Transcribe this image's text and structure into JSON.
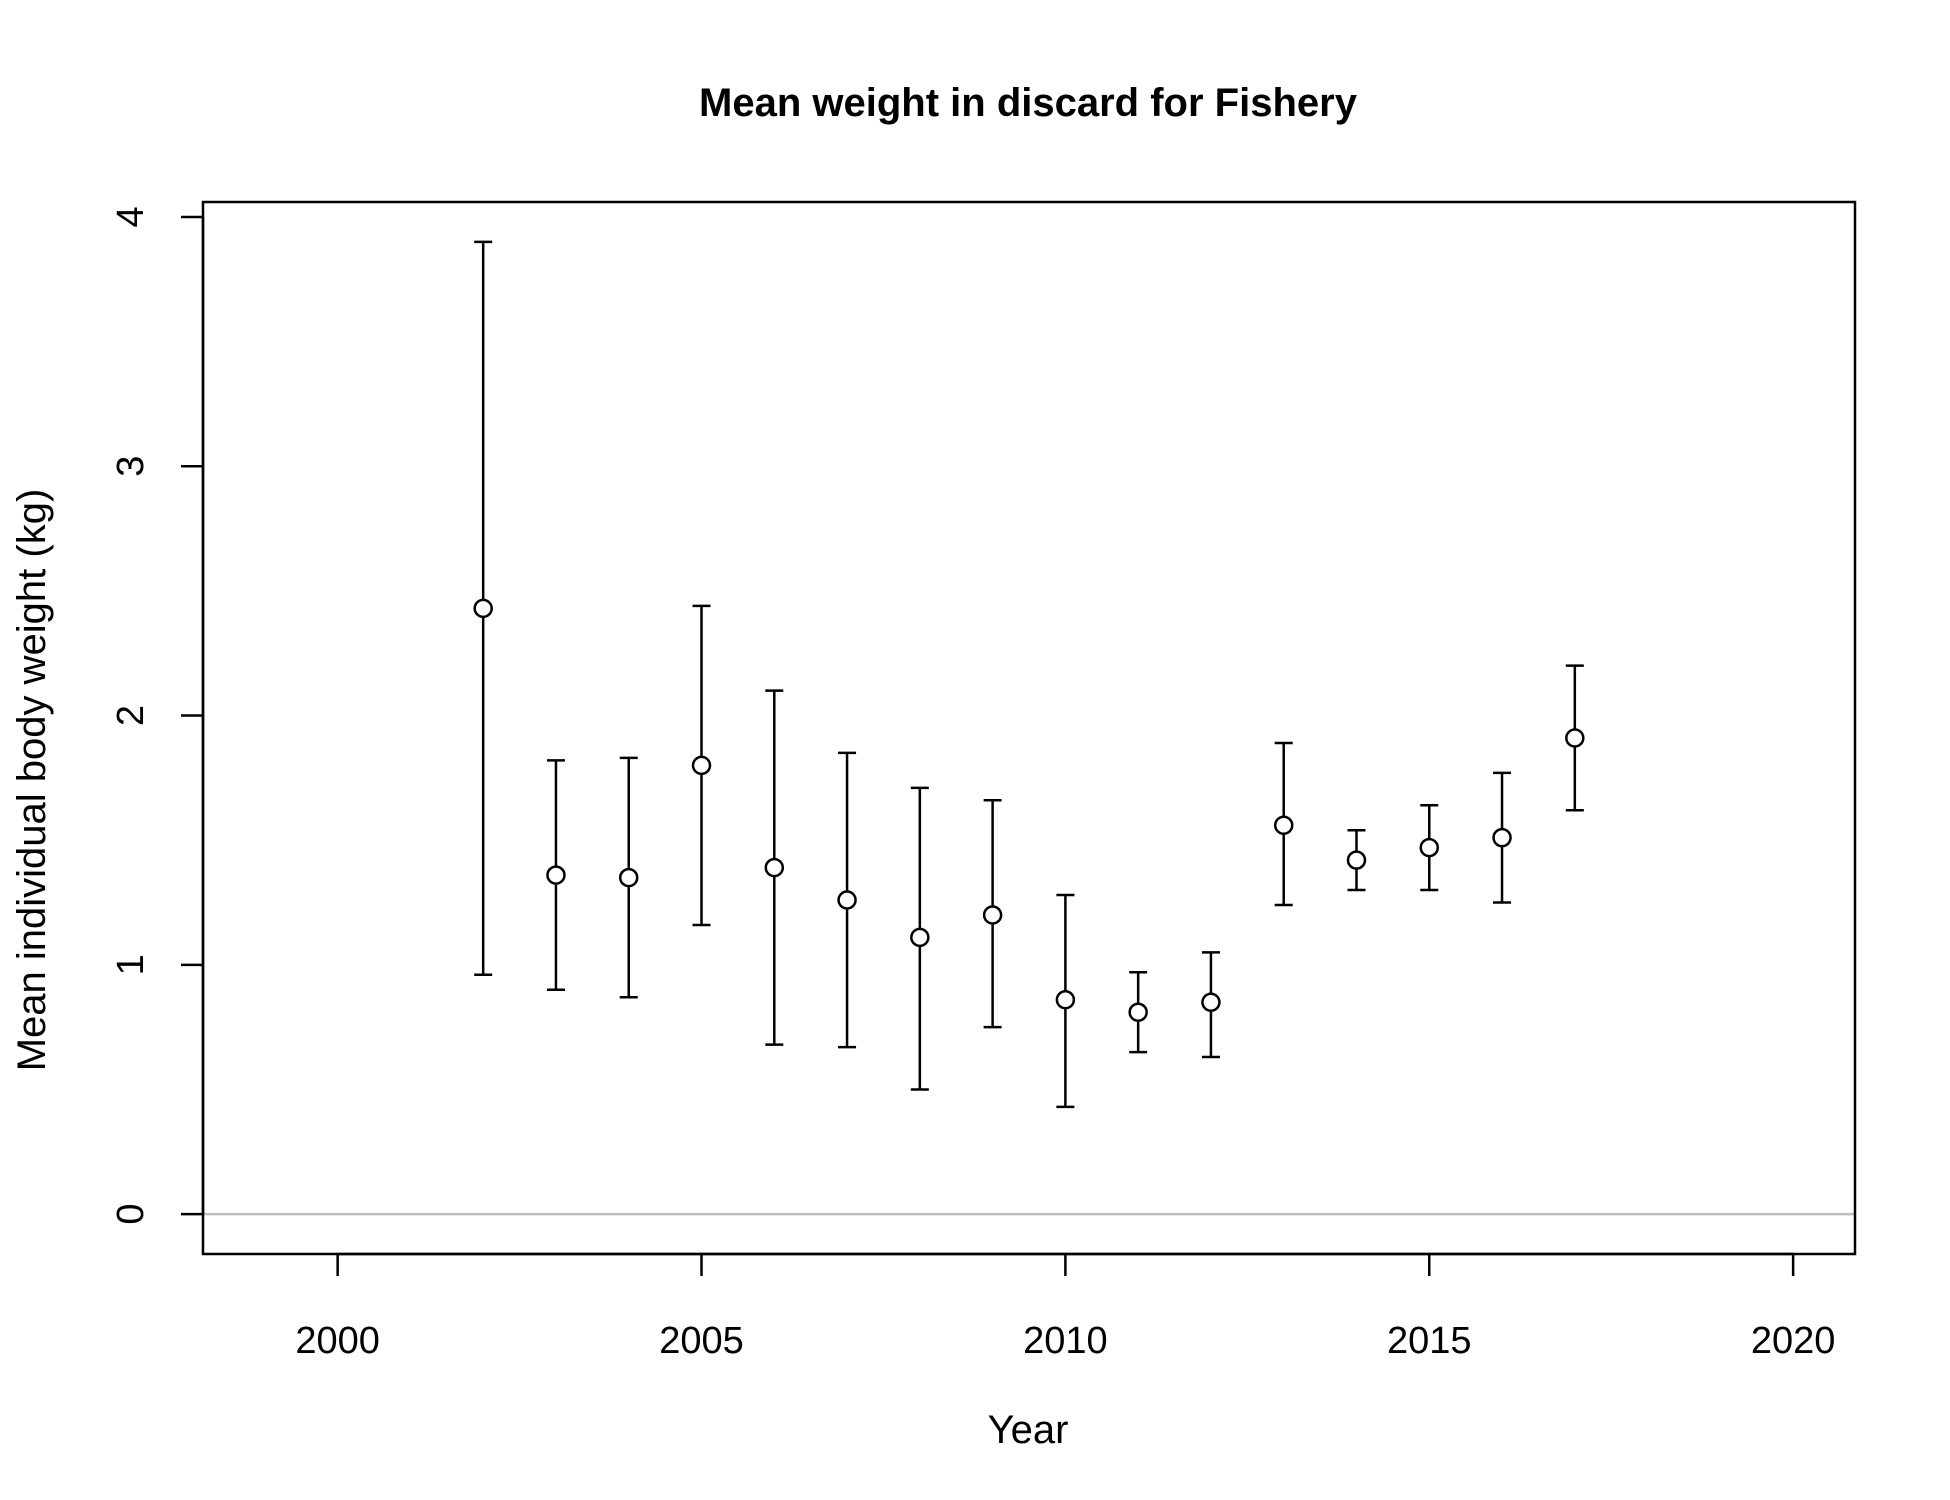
{
  "chart_data": {
    "type": "scatter",
    "title": "Mean weight in discard for Fishery",
    "xlabel": "Year",
    "ylabel": "Mean individual body weight (kg)",
    "xlim": [
      1998.15,
      2020.85
    ],
    "ylim": [
      -0.16,
      4.06
    ],
    "xticks": [
      2000,
      2005,
      2010,
      2015,
      2020
    ],
    "xtick_labels": [
      "2000",
      "2005",
      "2010",
      "2015",
      "2020"
    ],
    "yticks": [
      0,
      1,
      2,
      3,
      4
    ],
    "ytick_labels": [
      "0",
      "1",
      "2",
      "3",
      "4"
    ],
    "reference_line": {
      "y": 0,
      "color": "#bebebe"
    },
    "grid": false,
    "series": [
      {
        "marker": "open-circle",
        "color": "#000000",
        "points": [
          {
            "x": 2002,
            "y": 2.43,
            "lower": 0.96,
            "upper": 3.9
          },
          {
            "x": 2003,
            "y": 1.36,
            "lower": 0.9,
            "upper": 1.82
          },
          {
            "x": 2004,
            "y": 1.35,
            "lower": 0.87,
            "upper": 1.83
          },
          {
            "x": 2005,
            "y": 1.8,
            "lower": 1.16,
            "upper": 2.44
          },
          {
            "x": 2006,
            "y": 1.39,
            "lower": 0.68,
            "upper": 2.1
          },
          {
            "x": 2007,
            "y": 1.26,
            "lower": 0.67,
            "upper": 1.85
          },
          {
            "x": 2008,
            "y": 1.11,
            "lower": 0.5,
            "upper": 1.71
          },
          {
            "x": 2009,
            "y": 1.2,
            "lower": 0.75,
            "upper": 1.66
          },
          {
            "x": 2010,
            "y": 0.86,
            "lower": 0.43,
            "upper": 1.28
          },
          {
            "x": 2011,
            "y": 0.81,
            "lower": 0.65,
            "upper": 0.97
          },
          {
            "x": 2012,
            "y": 0.85,
            "lower": 0.63,
            "upper": 1.05
          },
          {
            "x": 2013,
            "y": 1.56,
            "lower": 1.24,
            "upper": 1.89
          },
          {
            "x": 2014,
            "y": 1.42,
            "lower": 1.3,
            "upper": 1.54
          },
          {
            "x": 2015,
            "y": 1.47,
            "lower": 1.3,
            "upper": 1.64
          },
          {
            "x": 2016,
            "y": 1.51,
            "lower": 1.25,
            "upper": 1.77
          },
          {
            "x": 2017,
            "y": 1.91,
            "lower": 1.62,
            "upper": 2.2
          }
        ]
      }
    ]
  }
}
